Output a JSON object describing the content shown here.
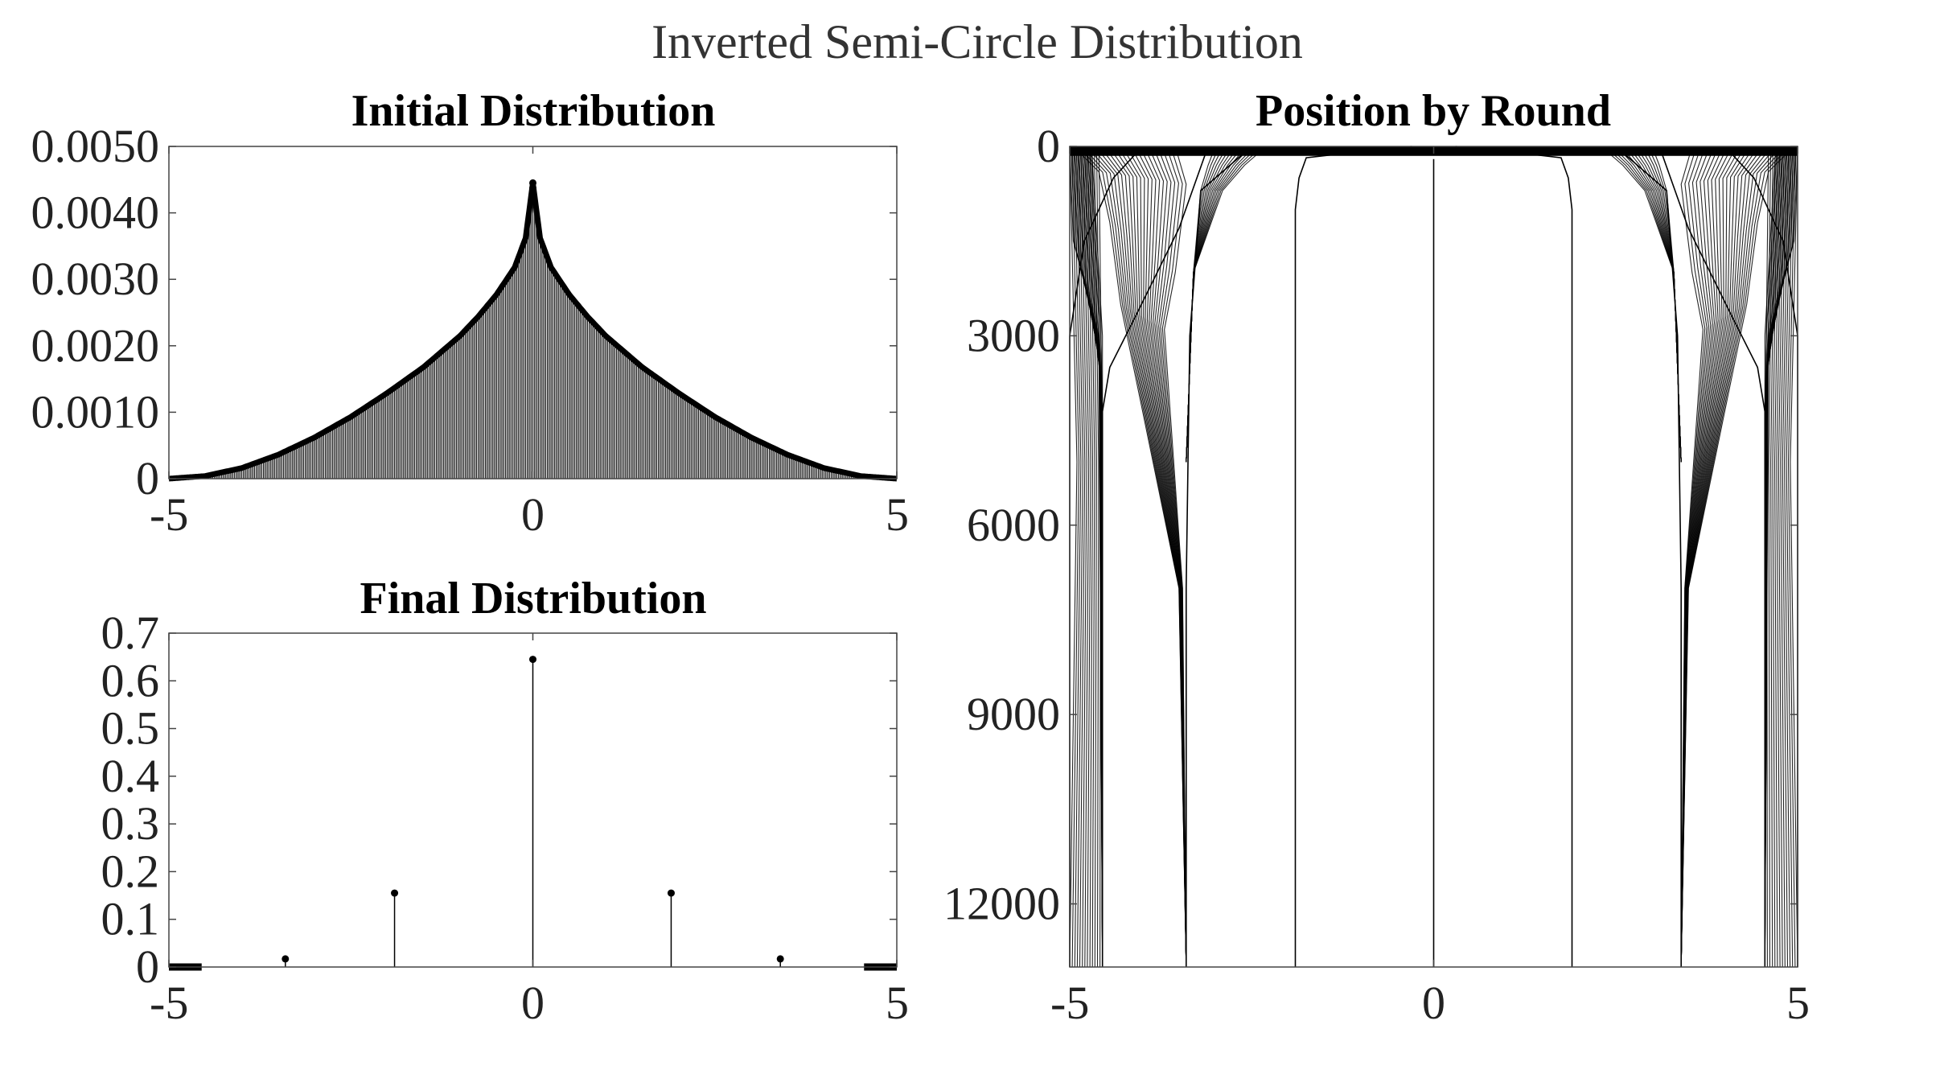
{
  "figure": {
    "title": "Inverted Semi-Circle Distribution"
  },
  "chart_data": [
    {
      "id": "initial",
      "type": "stem",
      "title": "Initial Distribution",
      "xlabel": "",
      "ylabel": "",
      "xlim": [
        -5,
        5
      ],
      "ylim": [
        0,
        0.005
      ],
      "x_ticks": [
        -5,
        0,
        5
      ],
      "x_tick_labels": [
        "-5",
        "0",
        "5"
      ],
      "y_ticks": [
        0,
        0.001,
        0.002,
        0.003,
        0.004,
        0.005
      ],
      "y_tick_labels": [
        "0",
        "0.0010",
        "0.0020",
        "0.0030",
        "0.0040",
        "0.0050"
      ],
      "series": [
        {
          "sampled_x": [
            -5.0,
            -4.5,
            -4.0,
            -3.5,
            -3.0,
            -2.5,
            -2.0,
            -1.5,
            -1.0,
            -0.75,
            -0.5,
            -0.25,
            -0.1,
            0.0,
            0.1,
            0.25,
            0.5,
            0.75,
            1.0,
            1.5,
            2.0,
            2.5,
            3.0,
            3.5,
            4.0,
            4.5,
            5.0
          ],
          "sampled_y": [
            0.0,
            4e-05,
            0.00016,
            0.00036,
            0.00062,
            0.00093,
            0.00129,
            0.00168,
            0.00215,
            0.00244,
            0.00277,
            0.00318,
            0.00362,
            0.00445,
            0.00362,
            0.00318,
            0.00277,
            0.00244,
            0.00215,
            0.00168,
            0.00129,
            0.00093,
            0.00062,
            0.00036,
            0.00016,
            4e-05,
            0.0
          ],
          "peak": {
            "x": 0,
            "y": 0.00445
          },
          "color": "#000000"
        }
      ],
      "grid": false,
      "legend": "none"
    },
    {
      "id": "final",
      "type": "stem",
      "title": "Final Distribution",
      "xlabel": "",
      "ylabel": "",
      "xlim": [
        -5,
        5
      ],
      "ylim": [
        0,
        0.7
      ],
      "x_ticks": [
        -5,
        0,
        5
      ],
      "x_tick_labels": [
        "-5",
        "0",
        "5"
      ],
      "y_ticks": [
        0,
        0.1,
        0.2,
        0.3,
        0.4,
        0.5,
        0.6,
        0.7
      ],
      "y_tick_labels": [
        "0",
        "0.1",
        "0.2",
        "0.3",
        "0.4",
        "0.5",
        "0.6",
        "0.7"
      ],
      "series": [
        {
          "x": [
            -3.4,
            -1.9,
            0,
            1.9,
            3.4
          ],
          "y": [
            0.017,
            0.155,
            0.645,
            0.155,
            0.017
          ],
          "near_zero_ranges": [
            [
              -5,
              -4.55
            ],
            [
              4.55,
              5
            ]
          ],
          "color": "#000000"
        }
      ],
      "grid": false,
      "legend": "none"
    },
    {
      "id": "rounds",
      "type": "line",
      "title": "Position by Round",
      "xlabel": "",
      "ylabel": "",
      "xlim": [
        -5,
        5
      ],
      "ylim": [
        13000,
        0
      ],
      "y_axis_reversed": true,
      "x_ticks": [
        -5,
        0,
        5
      ],
      "x_tick_labels": [
        "-5",
        "0",
        "5"
      ],
      "y_ticks": [
        0,
        3000,
        6000,
        9000,
        12000
      ],
      "y_tick_labels": [
        "0",
        "3000",
        "6000",
        "9000",
        "12000"
      ],
      "final_positions": [
        -5,
        -4.55,
        -3.4,
        -1.9,
        0,
        1.9,
        3.4,
        4.55,
        5
      ],
      "series": [
        {
          "name": "",
          "x": [
            0,
            0
          ],
          "y": [
            200,
            13000
          ]
        },
        {
          "name": "",
          "x": [
            -0.3,
            -1.0,
            -1.75,
            -1.85,
            -1.9,
            -1.9
          ],
          "y": [
            0,
            80,
            180,
            500,
            1000,
            13000
          ]
        },
        {
          "name": "",
          "x": [
            0.3,
            1.0,
            1.75,
            1.85,
            1.9,
            1.9
          ],
          "y": [
            0,
            80,
            180,
            500,
            1000,
            13000
          ]
        },
        {
          "name": "",
          "x": [
            -2.5,
            -2.8,
            -3.2,
            -3.35,
            -3.4,
            -3.4
          ],
          "y": [
            0,
            300,
            700,
            3000,
            7000,
            13000
          ]
        },
        {
          "name": "",
          "x": [
            2.5,
            2.8,
            3.2,
            3.35,
            3.4,
            3.4
          ],
          "y": [
            0,
            300,
            700,
            3000,
            7000,
            13000
          ]
        },
        {
          "name": "",
          "x": [
            -3.1,
            -3.5,
            -4.1,
            -4.45,
            -4.55,
            -4.55
          ],
          "y": [
            0,
            1300,
            2700,
            3500,
            4200,
            13000
          ]
        },
        {
          "name": "",
          "x": [
            3.1,
            3.5,
            4.1,
            4.45,
            4.55,
            4.55
          ],
          "y": [
            0,
            1300,
            2700,
            3500,
            4200,
            13000
          ]
        },
        {
          "name": "",
          "x": [
            -4.0,
            -4.4,
            -4.8,
            -5.0,
            -5.0
          ],
          "y": [
            0,
            500,
            1500,
            3000,
            13000
          ]
        },
        {
          "name": "",
          "x": [
            4.0,
            4.4,
            4.8,
            5.0,
            5.0
          ],
          "y": [
            0,
            500,
            1500,
            3000,
            13000
          ]
        }
      ],
      "grid": false,
      "legend": "none"
    }
  ]
}
